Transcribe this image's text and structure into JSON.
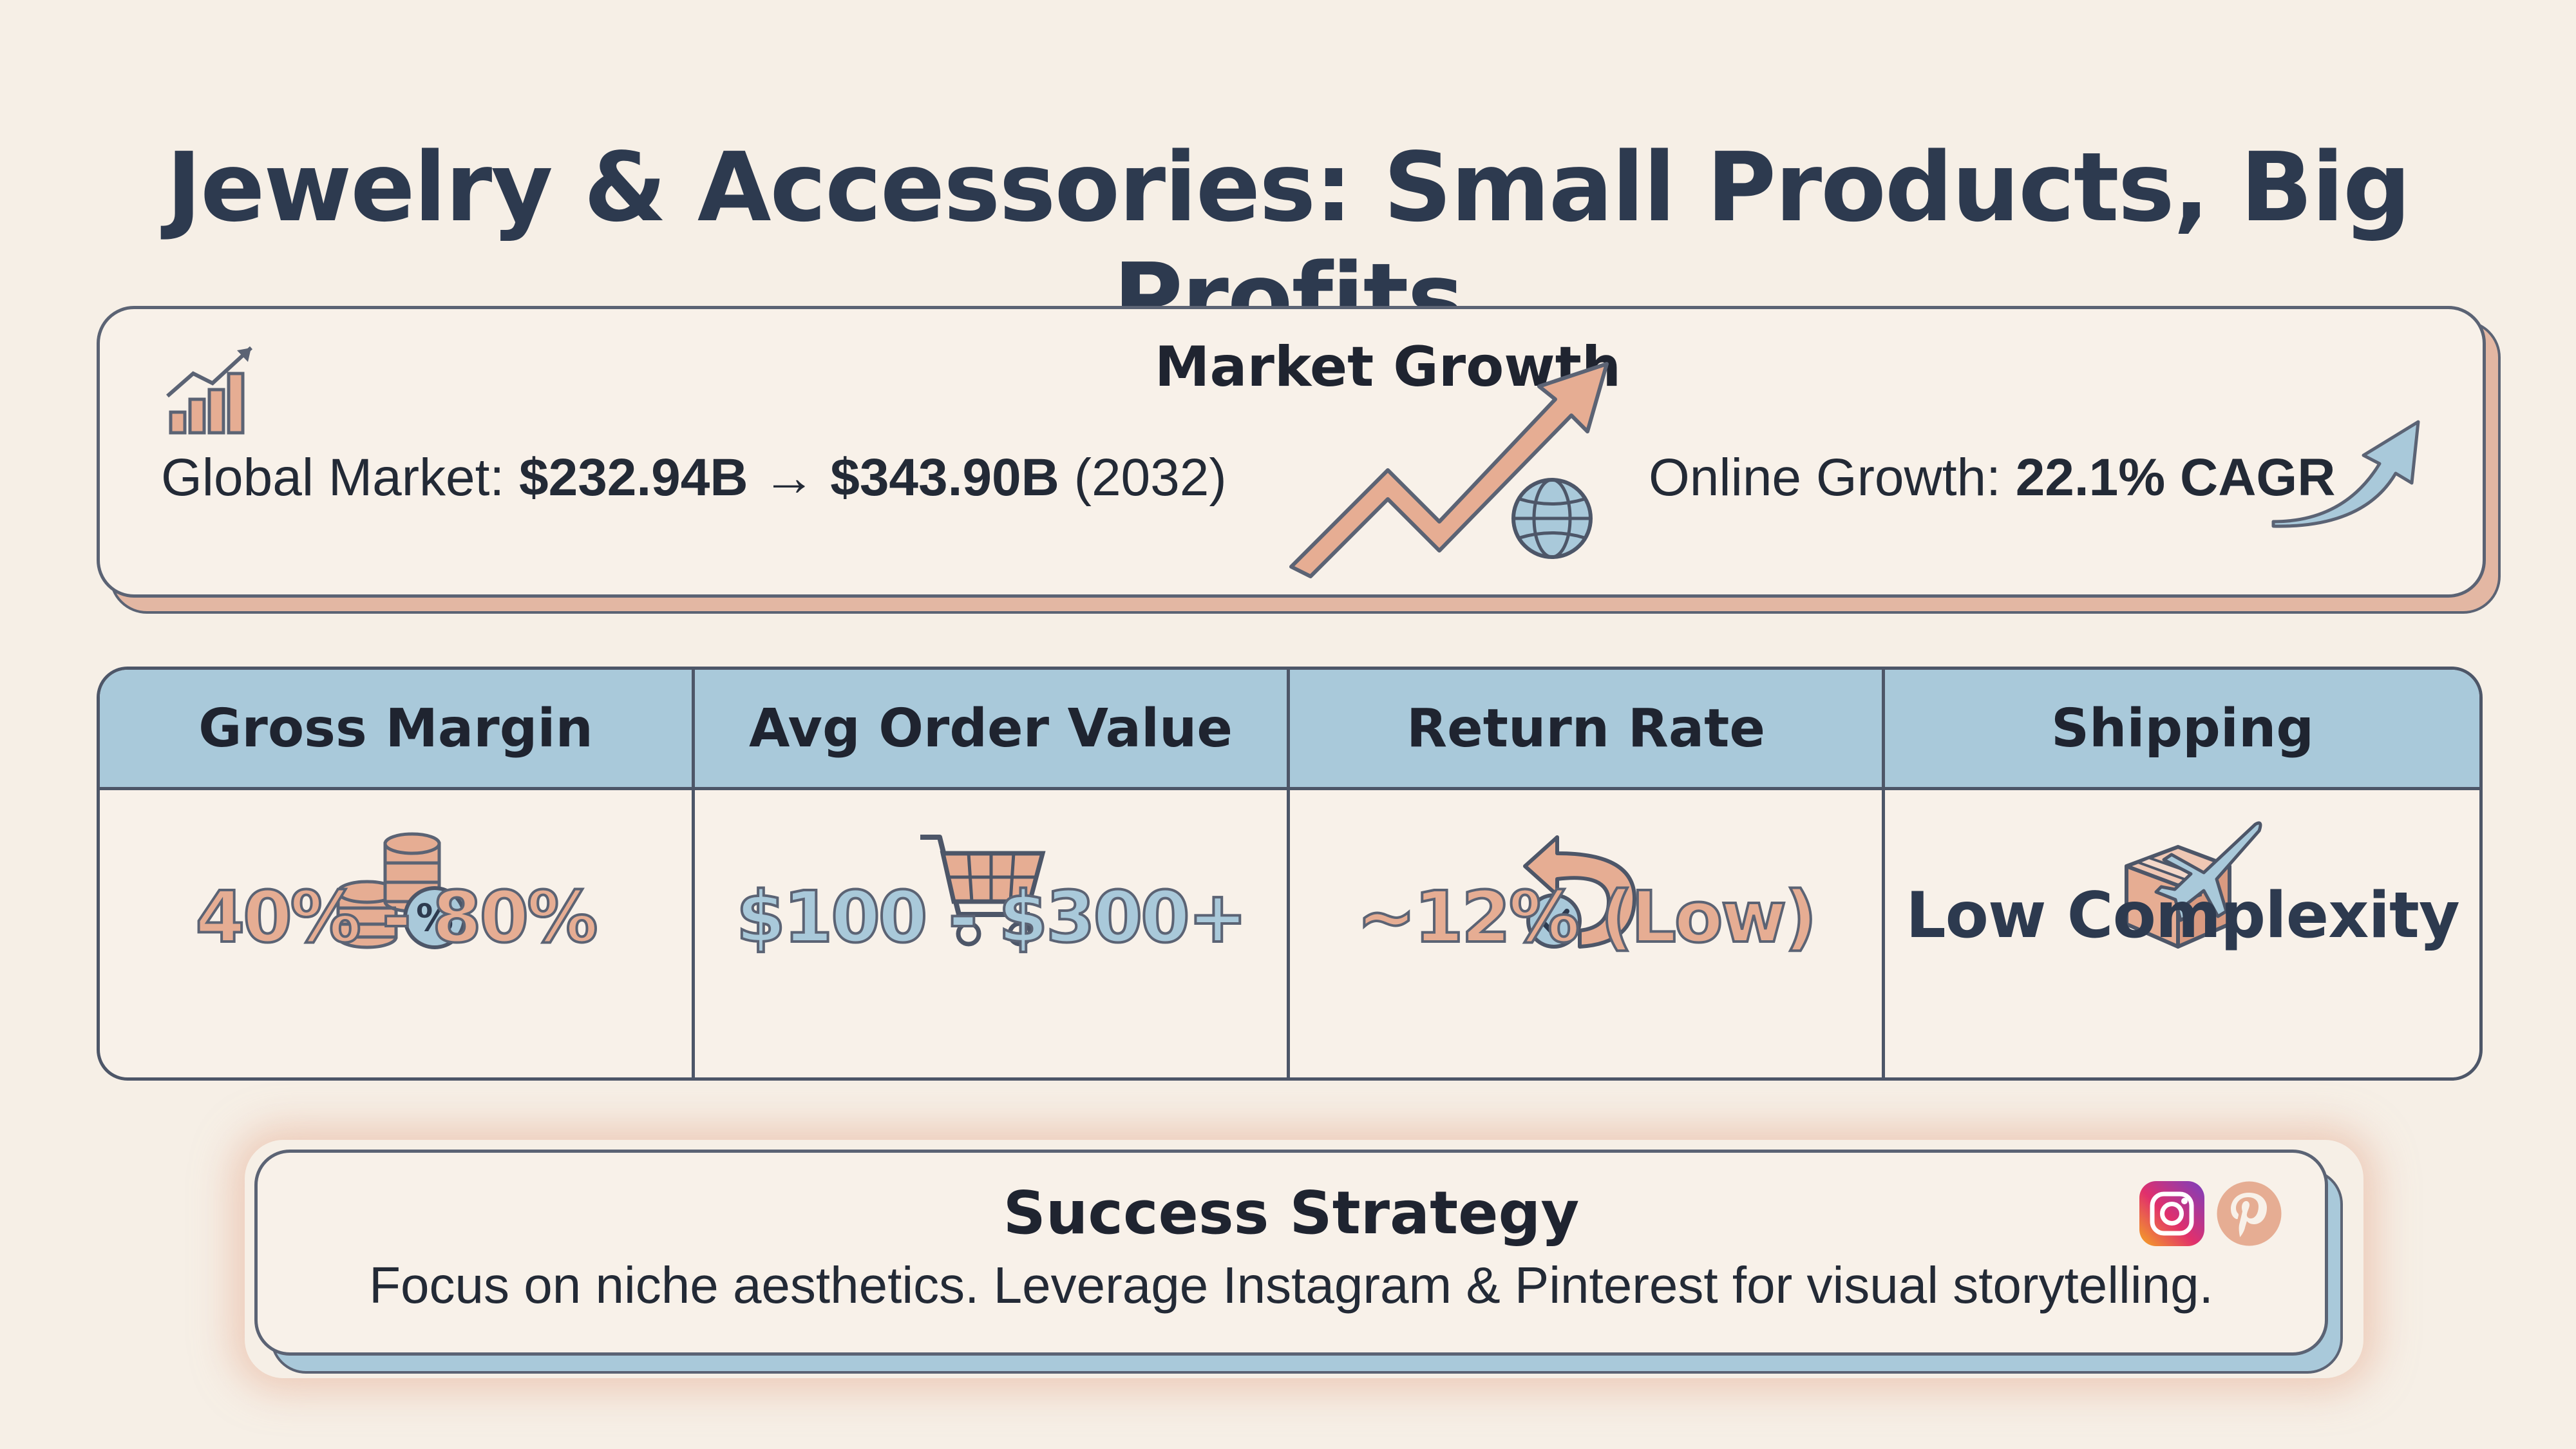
{
  "title": "Jewelry & Accessories: Small Products, Big Profits",
  "market": {
    "title": "Market Growth",
    "global_label": "Global Market: ",
    "global_from": "$232.94B",
    "arrow": "→",
    "global_to": "$343.90B",
    "global_year": " (2032)",
    "online_label": "Online Growth: ",
    "online_value": "22.1% CAGR"
  },
  "metrics": [
    {
      "header": "Gross Margin",
      "value": "40% - 80%",
      "icon": "coins-percent-icon"
    },
    {
      "header": "Avg Order Value",
      "value": "$100 - $300+",
      "icon": "shopping-cart-icon"
    },
    {
      "header": "Return Rate",
      "value": "~12% (Low)",
      "icon": "return-arrow-check-icon"
    },
    {
      "header": "Shipping",
      "value": "Low Complexity",
      "icon": "box-airplane-icon"
    }
  ],
  "strategy": {
    "title": "Success Strategy",
    "text": "Focus on niche aesthetics. Leverage Instagram & Pinterest for visual storytelling."
  },
  "colors": {
    "background": "#f6efe6",
    "peach": "#e6ad93",
    "blue": "#a9c9da",
    "dark": "#2d3a4f"
  }
}
